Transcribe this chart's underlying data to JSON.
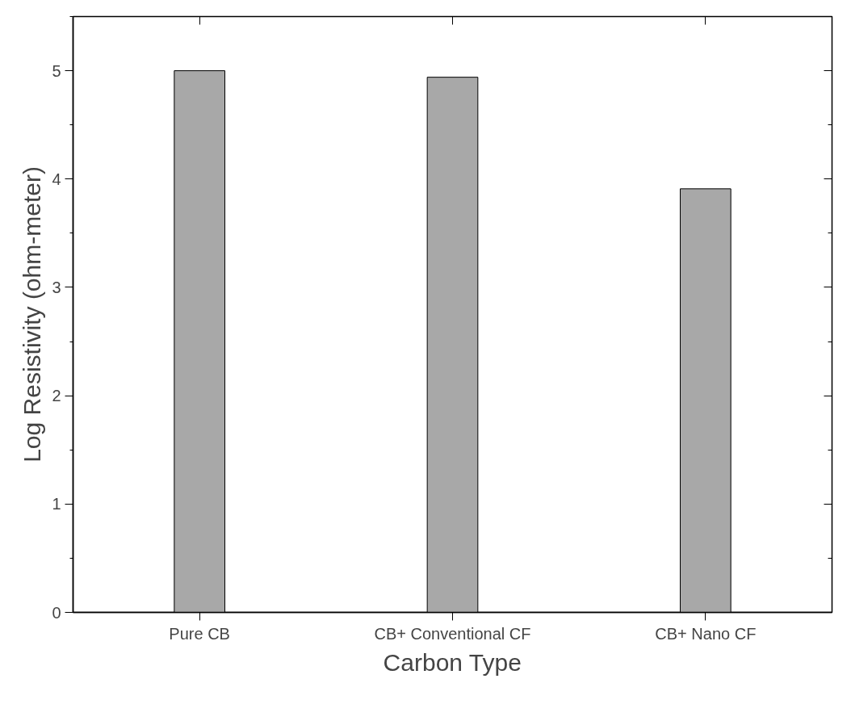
{
  "chart_data": {
    "type": "bar",
    "xlabel": "Carbon Type",
    "ylabel": "Log Resistivity (ohm-meter)",
    "categories": [
      "Pure CB",
      "CB+ Conventional CF",
      "CB+ Nano CF"
    ],
    "values": [
      5.0,
      4.94,
      3.91
    ],
    "color": "#a8a8a8",
    "ylim": [
      0,
      5.5
    ],
    "yticks": [
      0,
      1,
      2,
      3,
      4,
      5
    ],
    "grid": false
  }
}
